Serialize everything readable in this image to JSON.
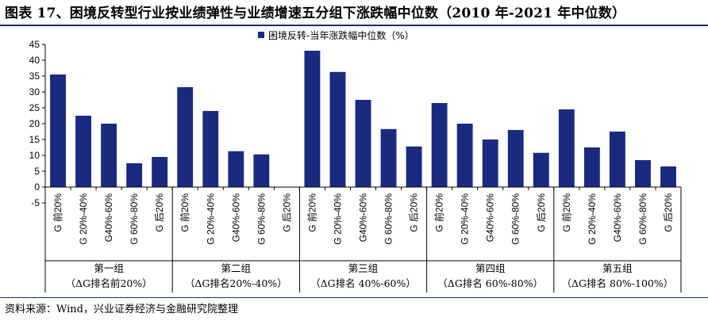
{
  "title": "图表 17、困境反转型行业按业绩弹性与业绩增速五分组下涨跌幅中位数（2010 年-2021 年中位数）",
  "source": "资料来源：Wind，兴业证券经济与金融研究院整理",
  "colors": {
    "bar": "#1a2a80",
    "axis": "#000000",
    "rule": "#1f2a6b"
  },
  "chart_data": {
    "type": "bar",
    "legend_position": "top-right",
    "grid": false,
    "ylim": [
      -5,
      45
    ],
    "yticks": [
      -5,
      0,
      5,
      10,
      15,
      20,
      25,
      30,
      35,
      40,
      45
    ],
    "series": [
      {
        "name": "困境反转-当年涨跌幅中位数（%）",
        "values": [
          35.5,
          22.5,
          20,
          7.5,
          9.5,
          31.5,
          24,
          11.3,
          10.3,
          0,
          43,
          36.3,
          27.5,
          18.3,
          12.8,
          26.5,
          20,
          15,
          18,
          10.8,
          24.5,
          12.5,
          17.5,
          8.5,
          6.5
        ]
      }
    ],
    "groups": [
      {
        "name": "第一组",
        "subtitle": "（ΔG排名前20%）",
        "categories": [
          "G 前20%",
          "G 20%-40%",
          "G40%-60%",
          "G 60%-80%",
          "G 后20%"
        ]
      },
      {
        "name": "第二组",
        "subtitle": "（ΔG排名20%-40%）",
        "categories": [
          "G 前20%",
          "G 20%-40%",
          "G40%-60%",
          "G 60%-80%",
          "G 后20%"
        ]
      },
      {
        "name": "第三组",
        "subtitle": "（ΔG排名 40%-60%）",
        "categories": [
          "G 前20%",
          "G 20%-40%",
          "G40%-60%",
          "G 60%-80%",
          "G 后20%"
        ]
      },
      {
        "name": "第四组",
        "subtitle": "（ΔG排名 60%-80%）",
        "categories": [
          "G 前20%",
          "G 20%-40%",
          "G40%-60%",
          "G 60%-80%",
          "G 后20%"
        ]
      },
      {
        "name": "第五组",
        "subtitle": "（ΔG排名 80%-100%）",
        "categories": [
          "G 前20%",
          "G 20%-40%",
          "G40%-60%",
          "G 60%-80%",
          "G 后20%"
        ]
      }
    ]
  }
}
